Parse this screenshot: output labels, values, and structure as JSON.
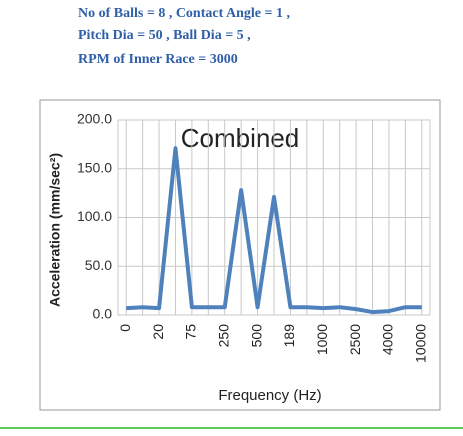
{
  "header": {
    "lines": [
      "No of Balls = 8 , Contact Angle = 1 ,",
      "Pitch Dia = 50 , Ball Dia = 5 ,",
      "RPM of Inner Race = 3000"
    ]
  },
  "chart_data": {
    "type": "line",
    "title": "Combined",
    "x_label": "Frequency (Hz)",
    "y_label": "Acceleration (mm/sec²)",
    "categories": [
      "0",
      null,
      "20",
      null,
      "75",
      null,
      "250",
      null,
      "500",
      null,
      "189",
      null,
      "1000",
      null,
      "2500",
      null,
      "4000",
      null,
      "10000"
    ],
    "series": [
      {
        "name": "Combined",
        "color": "#4f81bd",
        "values": [
          7,
          8,
          7,
          171,
          8,
          8,
          8,
          128,
          8,
          121,
          8,
          8,
          7,
          8,
          6,
          3,
          4,
          8,
          8
        ]
      }
    ],
    "ylim": [
      0,
      200
    ],
    "yticks": [
      {
        "value": 0,
        "label": "0.0"
      },
      {
        "value": 50,
        "label": "50.0"
      },
      {
        "value": 100,
        "label": "100.0"
      },
      {
        "value": 150,
        "label": "150.0"
      },
      {
        "value": 200,
        "label": "200.0"
      }
    ],
    "grid": true
  }
}
